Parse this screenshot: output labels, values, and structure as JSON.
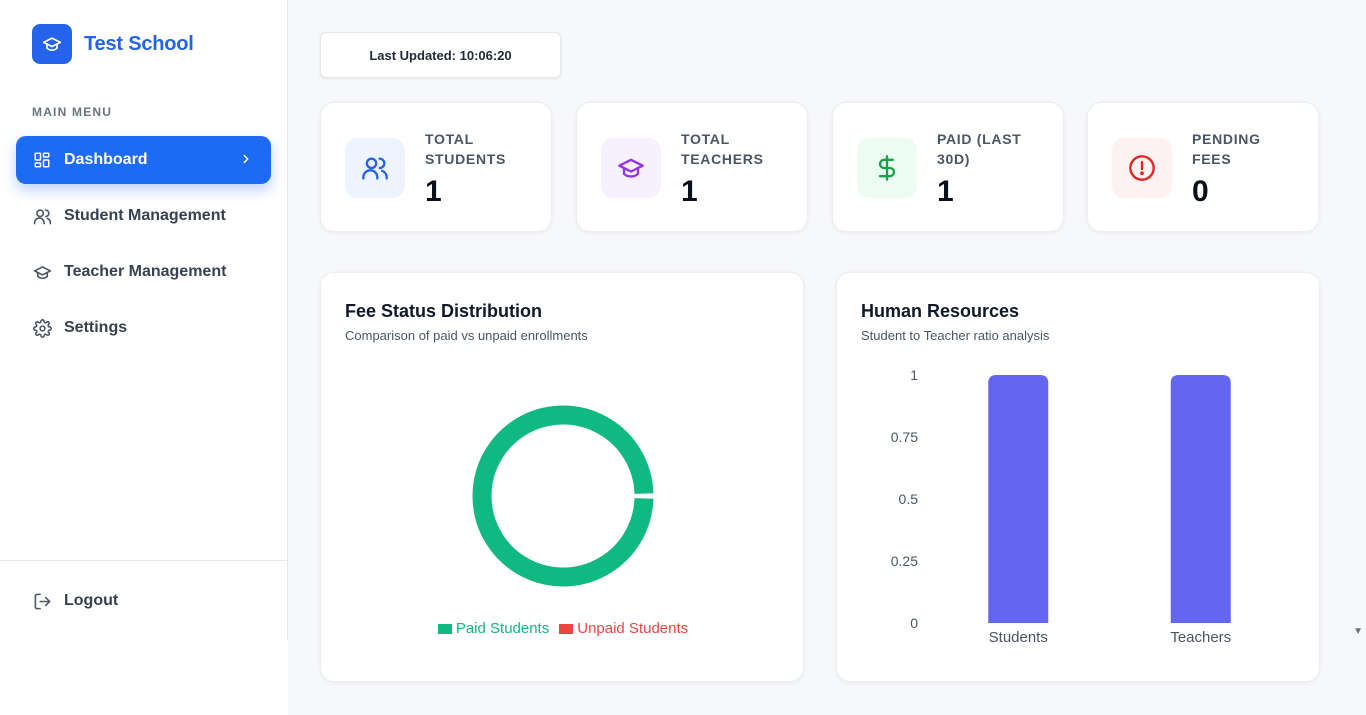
{
  "brand": {
    "name": "Test School",
    "icon": "graduation-cap-icon"
  },
  "sidebar": {
    "heading": "MAIN MENU",
    "items": [
      {
        "label": "Dashboard",
        "icon": "grid-icon",
        "active": true
      },
      {
        "label": "Student Management",
        "icon": "users-icon"
      },
      {
        "label": "Teacher Management",
        "icon": "graduation-cap-icon"
      },
      {
        "label": "Settings",
        "icon": "gear-icon"
      }
    ],
    "logout": {
      "label": "Logout",
      "icon": "logout-icon"
    }
  },
  "header": {
    "last_updated": "Last Updated: 10:06:20"
  },
  "stats": [
    {
      "label": "TOTAL STUDENTS",
      "value": "1",
      "icon": "users-icon",
      "color": "#2563eb",
      "bg": "#eef4ff"
    },
    {
      "label": "TOTAL TEACHERS",
      "value": "1",
      "icon": "graduation-cap-icon",
      "color": "#9333ea",
      "bg": "#f7f0ff"
    },
    {
      "label": "PAID (LAST 30D)",
      "value": "1",
      "icon": "dollar-icon",
      "color": "#16a34a",
      "bg": "#edfcf2"
    },
    {
      "label": "PENDING FEES",
      "value": "0",
      "icon": "alert-circle-icon",
      "color": "#dc2626",
      "bg": "#fef1f1"
    }
  ],
  "fee_panel": {
    "title": "Fee Status Distribution",
    "subtitle": "Comparison of paid vs unpaid enrollments"
  },
  "hr_panel": {
    "title": "Human Resources",
    "subtitle": "Student to Teacher ratio analysis"
  },
  "colors": {
    "accent": "#1d6bf5",
    "paid": "#10b981",
    "unpaid": "#ef4444",
    "bar": "#6366f1"
  },
  "chart_data": [
    {
      "type": "pie",
      "categories": [
        "Paid Students",
        "Unpaid Students"
      ],
      "values": [
        1,
        0
      ],
      "colors": [
        "#10b981",
        "#ef4444"
      ],
      "legend": "bottom"
    },
    {
      "type": "bar",
      "categories": [
        "Students",
        "Teachers"
      ],
      "values": [
        1,
        1
      ],
      "ylim": [
        0,
        1
      ],
      "yticks": [
        "0",
        "0.25",
        "0.5",
        "0.75",
        "1"
      ],
      "color": "#6366f1"
    }
  ]
}
